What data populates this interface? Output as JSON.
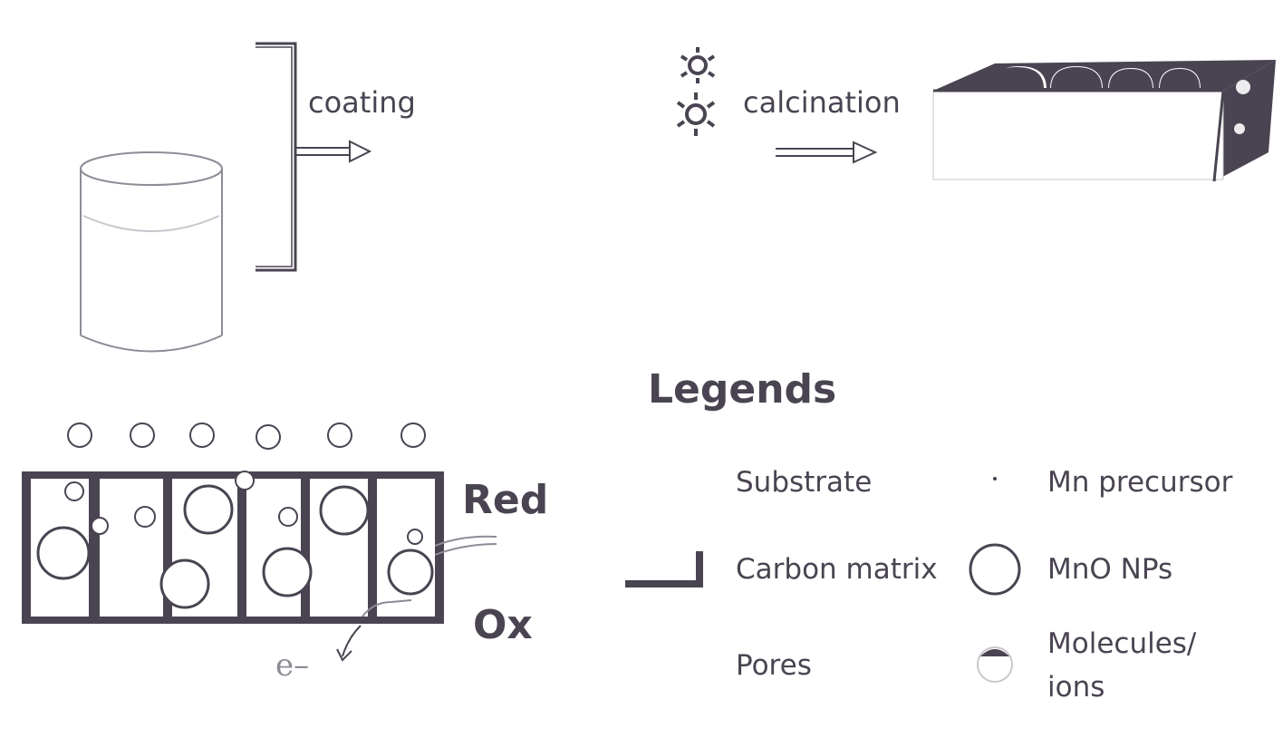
{
  "steps": {
    "coating": "coating",
    "calcination": "calcination"
  },
  "mechanism": {
    "red": "Red",
    "ox": "Ox",
    "electron": "e–"
  },
  "legend": {
    "title": "Legends",
    "items": [
      {
        "label": "Substrate"
      },
      {
        "label": "Mn precursor"
      },
      {
        "label": "Carbon matrix"
      },
      {
        "label": "MnO NPs"
      },
      {
        "label": "Pores"
      },
      {
        "label": "Molecules/"
      },
      {
        "label": "ions"
      }
    ]
  },
  "colors": {
    "ink": "#4a4452",
    "light": "#9a97a0"
  }
}
